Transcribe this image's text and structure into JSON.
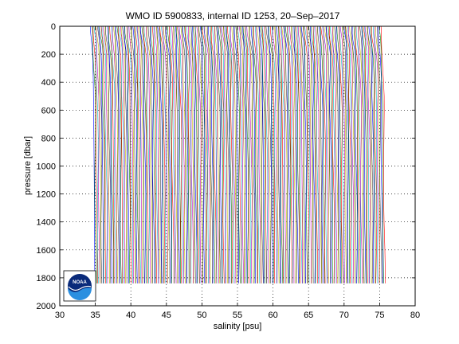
{
  "chart_data": {
    "type": "line",
    "title": "WMO ID 5900833, internal ID 1253, 20–Sep–2017",
    "xlabel": "salinity [psu]",
    "ylabel": "pressure [dbar]",
    "xlim": [
      30,
      80
    ],
    "ylim": [
      0,
      2000
    ],
    "y_reversed": true,
    "xticks": [
      30,
      35,
      40,
      45,
      50,
      55,
      60,
      65,
      70,
      75,
      80
    ],
    "yticks": [
      0,
      200,
      400,
      600,
      800,
      1000,
      1200,
      1400,
      1600,
      1800,
      2000
    ],
    "grid": true,
    "profiles": {
      "count": 241,
      "first_offset_psu": 34.3,
      "offset_step_psu": 0.17,
      "pressure_max_dbar": 1840,
      "pressure": [
        0,
        50,
        100,
        150,
        200,
        300,
        400,
        500,
        600,
        800,
        1000,
        1200,
        1400,
        1600,
        1840
      ],
      "anomaly_psu": [
        0.0,
        0.05,
        0.15,
        0.25,
        0.32,
        0.38,
        0.42,
        0.44,
        0.46,
        0.5,
        0.53,
        0.56,
        0.58,
        0.6,
        0.62
      ],
      "colors": [
        "#0000ff",
        "#008000",
        "#ff0000",
        "#00bfbf",
        "#bf00bf",
        "#bfbf00",
        "#404040"
      ]
    }
  },
  "logo": {
    "text": "NOAA",
    "colors": {
      "navy": "#0a2a7a",
      "sky": "#2a8fe0",
      "white": "#ffffff"
    }
  }
}
